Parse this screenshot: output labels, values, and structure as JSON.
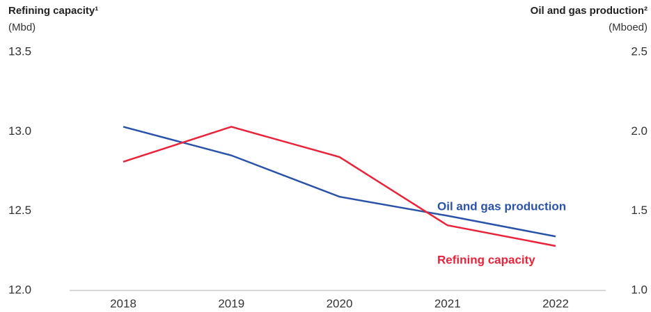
{
  "chart_data": {
    "type": "line",
    "ylabel": "Refining capacity¹",
    "ylabel_unit": "(Mbd)",
    "y2label": "Oil and gas production²",
    "y2label_unit": "(Mboed)",
    "categories": [
      "2018",
      "2019",
      "2020",
      "2021",
      "2022"
    ],
    "series": [
      {
        "name": "Oil and gas production",
        "color": "#2a52a8",
        "axis": "y2",
        "values": [
          2.03,
          1.85,
          1.59,
          1.47,
          1.34
        ]
      },
      {
        "name": "Refining capacity",
        "color": "#e8233a",
        "values": [
          12.81,
          13.03,
          12.84,
          12.41,
          12.28
        ]
      }
    ],
    "ylim": [
      12.0,
      13.5
    ],
    "yticks": [
      {
        "value": 12.0,
        "label": "12.0"
      },
      {
        "value": 12.5,
        "label": "12.5"
      },
      {
        "value": 13.0,
        "label": "13.0"
      },
      {
        "value": 13.5,
        "label": "13.5"
      }
    ],
    "y2lim": [
      1.0,
      2.5
    ],
    "y2ticks": [
      {
        "value": 1.0,
        "label": "1.0"
      },
      {
        "value": 1.5,
        "label": "1.5"
      },
      {
        "value": 2.0,
        "label": "2.0"
      },
      {
        "value": 2.5,
        "label": "2.5"
      }
    ],
    "grid": false
  }
}
